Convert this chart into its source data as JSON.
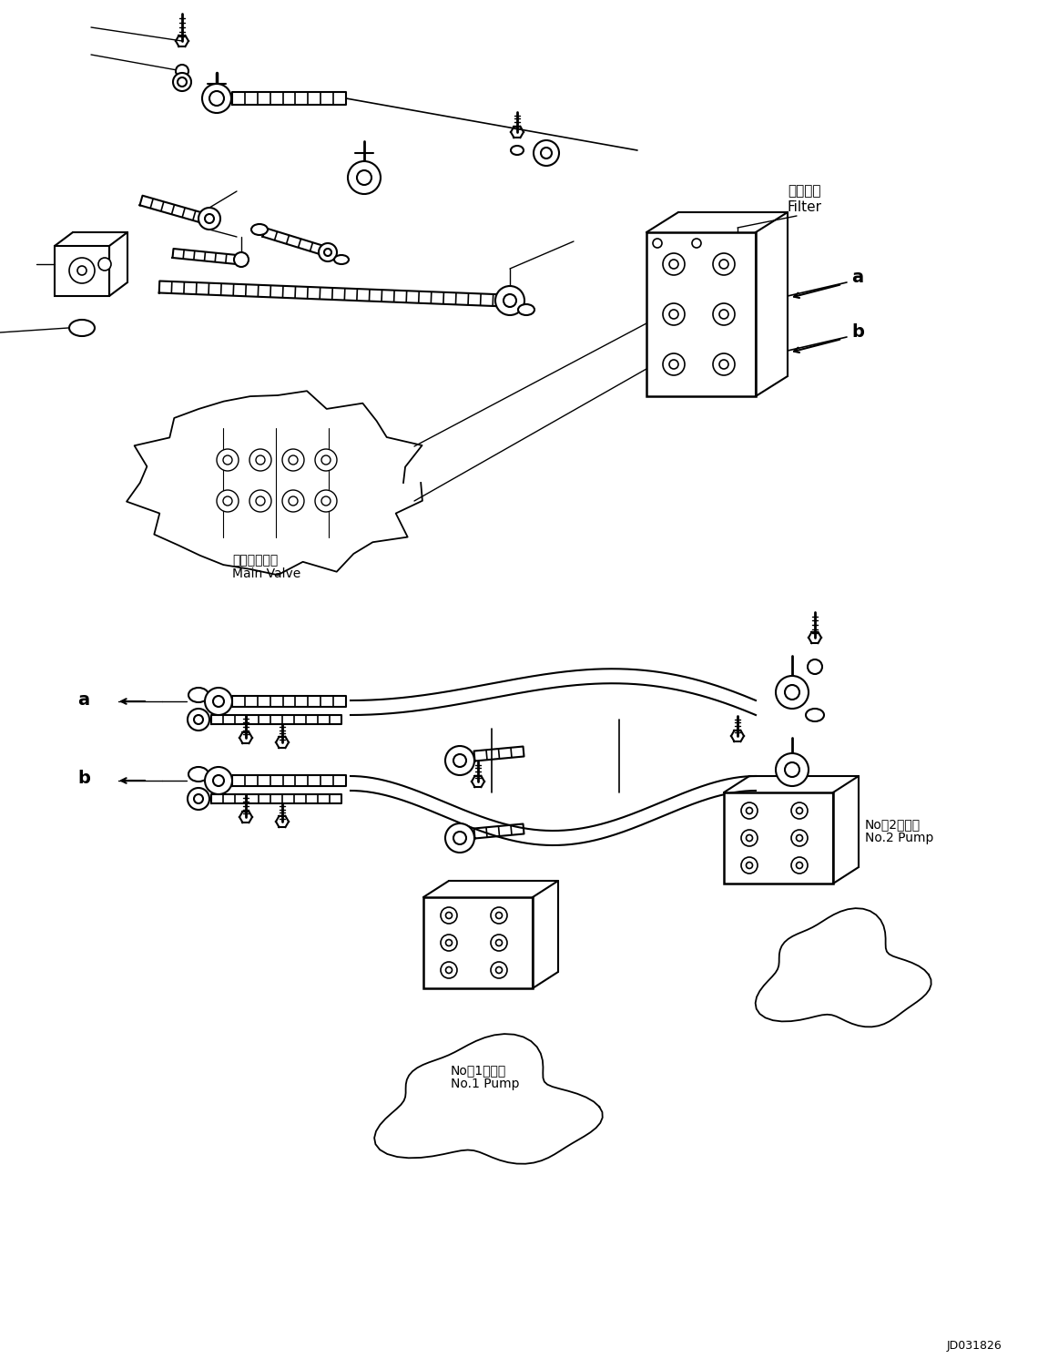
{
  "background_color": "#ffffff",
  "fig_width": 11.51,
  "fig_height": 14.92,
  "dpi": 100,
  "labels": {
    "filter_jp": "フィルタ",
    "filter_en": "Filter",
    "main_valve_jp": "メインバルブ",
    "main_valve_en": "Main Valve",
    "no2_pump_jp": "No．2ポンプ",
    "no2_pump_en": "No.2 Pump",
    "no1_pump_jp": "No．1ポンプ",
    "no1_pump_en": "No.1 Pump",
    "label_a": "a",
    "label_b": "b",
    "doc_id": "JD031826"
  }
}
